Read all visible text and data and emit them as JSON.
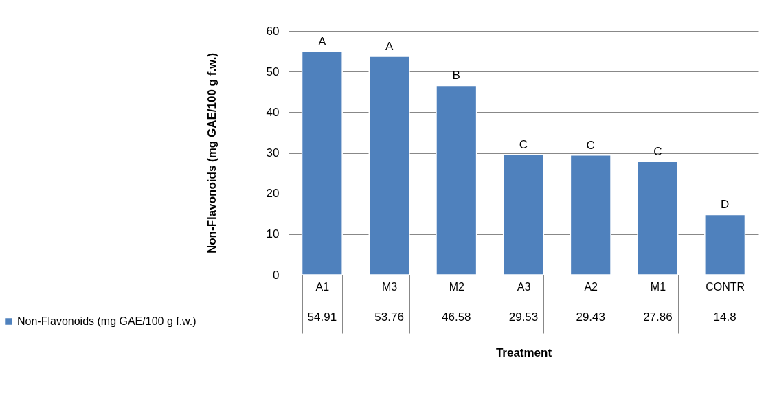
{
  "chart_data": {
    "type": "bar",
    "xlabel": "Treatment",
    "ylabel": "Non-Flavonoids (mg GAE/100 g f.w.)",
    "categories": [
      "A1",
      "M3",
      "M2",
      "A3",
      "A2",
      "M1",
      "CONTR"
    ],
    "series": [
      {
        "name": "Non-Flavonoids (mg GAE/100 g f.w.)",
        "color": "#4f81bd",
        "values": [
          54.91,
          53.76,
          46.58,
          29.53,
          29.43,
          27.86,
          14.8
        ]
      }
    ],
    "ylim": [
      0,
      60
    ],
    "yticks": [
      0,
      10,
      20,
      30,
      40,
      50,
      60
    ],
    "grid": "y",
    "legend": "bottom left",
    "data_labels": true,
    "annotations": [
      {
        "text": "A",
        "x": "A1",
        "y": 54.91
      },
      {
        "text": "A",
        "x": "M3",
        "y": 53.76
      },
      {
        "text": "B",
        "x": "M2",
        "y": 46.58
      },
      {
        "text": "C",
        "x": "A3",
        "y": 29.53
      },
      {
        "text": "C",
        "x": "A2",
        "y": 29.43
      },
      {
        "text": "C",
        "x": "M1",
        "y": 27.86
      },
      {
        "text": "D",
        "x": "CONTR",
        "y": 14.8
      }
    ]
  }
}
